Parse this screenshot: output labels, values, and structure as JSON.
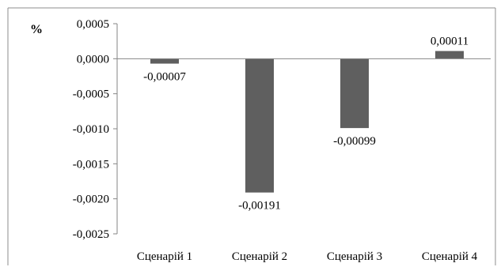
{
  "chart_data": {
    "type": "bar",
    "unit_label": "%",
    "categories": [
      "Сценарій 1",
      "Сценарій 2",
      "Сценарій 3",
      "Сценарій 4"
    ],
    "values": [
      -7e-05,
      -0.00191,
      -0.00099,
      0.00011
    ],
    "data_labels": [
      "-0,00007",
      "-0,00191",
      "-0,00099",
      "0,00011"
    ],
    "yticks": [
      0.0005,
      0.0,
      -0.0005,
      -0.001,
      -0.0015,
      -0.002,
      -0.0025
    ],
    "ytick_labels": [
      "0,0005",
      "0,0000",
      "-0,0005",
      "-0,0010",
      "-0,0015",
      "-0,0020",
      "-0,0025"
    ],
    "ylim": [
      -0.0025,
      0.0005
    ],
    "grid": false,
    "legend": "none",
    "bar_color": "#5f5f5f"
  }
}
